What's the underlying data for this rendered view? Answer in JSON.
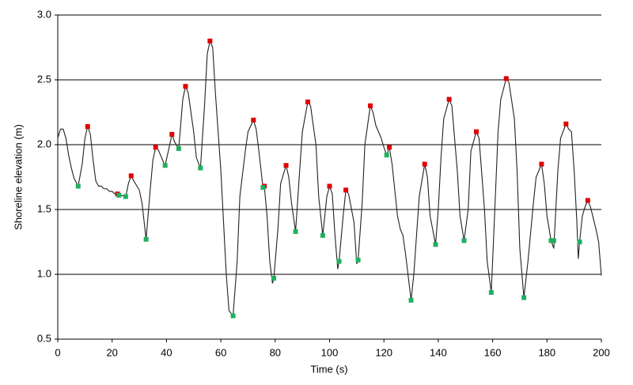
{
  "chart_data": {
    "type": "line",
    "xlabel": "Time (s)",
    "ylabel": "Shoreline elevation (m)",
    "xlim": [
      0,
      200
    ],
    "ylim": [
      0.5,
      3.0
    ],
    "xticks": [
      0,
      20,
      40,
      60,
      80,
      100,
      120,
      140,
      160,
      180,
      200
    ],
    "yticks": [
      {
        "value": 0.5,
        "label": "0.5"
      },
      {
        "value": 1.0,
        "label": "1.0"
      },
      1.5,
      {
        "value": 2.0,
        "label": "2.0"
      },
      2.5,
      {
        "value": 3.0,
        "label": "3.0"
      }
    ],
    "grid": true,
    "series": [
      {
        "color": "#222222",
        "x": [
          0,
          1,
          2,
          3,
          4,
          5,
          6,
          7.5,
          9,
          10,
          11,
          12,
          13,
          14,
          15,
          16,
          17,
          18,
          19,
          20,
          21,
          22,
          23,
          25,
          26,
          27,
          28,
          30,
          31,
          32.5,
          34,
          35,
          36,
          37,
          39,
          39.5,
          41,
          42,
          43,
          44.5,
          46,
          47,
          48,
          50,
          51,
          52.5,
          54,
          55,
          56,
          57,
          58,
          60,
          62,
          63,
          64.5,
          66,
          67,
          69,
          70,
          72,
          73,
          74,
          75.5,
          76,
          77,
          78,
          79,
          79.5,
          81,
          82,
          84,
          85,
          86,
          87.5,
          89,
          90,
          92,
          93,
          95,
          96,
          97.5,
          99,
          100,
          101,
          102,
          103,
          103.5,
          105,
          106,
          107,
          109,
          110,
          110.5,
          112,
          113,
          115,
          116,
          117,
          118,
          119,
          120,
          121,
          122,
          123,
          125,
          126,
          127,
          128,
          130,
          131,
          132,
          133,
          135,
          136,
          137,
          139,
          140,
          141,
          142,
          144,
          145,
          147,
          148,
          149.5,
          151,
          152,
          154,
          155,
          157,
          158,
          159.5,
          161,
          162,
          163,
          165,
          166,
          168,
          169,
          170,
          171.5,
          173,
          175,
          176,
          178,
          179,
          180,
          181.5,
          182.5,
          183,
          184,
          185,
          187,
          188,
          189,
          190,
          191,
          191.5,
          192,
          193,
          194,
          195,
          196,
          198,
          199,
          200
        ],
        "values": [
          2.05,
          2.12,
          2.12,
          2.05,
          1.92,
          1.82,
          1.74,
          1.68,
          1.85,
          2.05,
          2.14,
          2.08,
          1.88,
          1.72,
          1.68,
          1.68,
          1.66,
          1.66,
          1.64,
          1.64,
          1.62,
          1.62,
          1.61,
          1.6,
          1.7,
          1.76,
          1.72,
          1.65,
          1.55,
          1.27,
          1.65,
          1.88,
          1.98,
          1.96,
          1.86,
          1.84,
          1.98,
          2.08,
          2.02,
          1.97,
          2.35,
          2.45,
          2.4,
          2.1,
          1.9,
          1.82,
          2.3,
          2.7,
          2.8,
          2.75,
          2.4,
          1.8,
          1.0,
          0.72,
          0.68,
          1.1,
          1.6,
          1.95,
          2.1,
          2.19,
          2.12,
          1.95,
          1.67,
          1.68,
          1.45,
          1.1,
          0.93,
          0.97,
          1.35,
          1.7,
          1.84,
          1.75,
          1.55,
          1.33,
          1.8,
          2.1,
          2.33,
          2.3,
          2.0,
          1.6,
          1.3,
          1.6,
          1.68,
          1.62,
          1.3,
          1.04,
          1.1,
          1.45,
          1.65,
          1.62,
          1.4,
          1.08,
          1.11,
          1.55,
          2.0,
          2.3,
          2.25,
          2.15,
          2.1,
          2.05,
          1.98,
          1.92,
          1.98,
          1.85,
          1.45,
          1.35,
          1.3,
          1.15,
          0.8,
          1.0,
          1.3,
          1.6,
          1.85,
          1.75,
          1.45,
          1.23,
          1.5,
          1.9,
          2.2,
          2.35,
          2.3,
          1.8,
          1.45,
          1.26,
          1.5,
          1.95,
          2.1,
          2.05,
          1.5,
          1.1,
          0.86,
          1.6,
          2.1,
          2.35,
          2.51,
          2.48,
          2.2,
          1.8,
          1.2,
          0.82,
          1.1,
          1.55,
          1.75,
          1.85,
          1.7,
          1.45,
          1.26,
          1.2,
          1.4,
          1.8,
          2.05,
          2.16,
          2.12,
          2.1,
          1.8,
          1.4,
          1.12,
          1.25,
          1.45,
          1.52,
          1.57,
          1.52,
          1.35,
          1.25,
          0.99
        ]
      },
      {
        "color": "#e00000",
        "marker": "square",
        "x": [
          11,
          22,
          27,
          36,
          42,
          47,
          56,
          72,
          76,
          84,
          92,
          100,
          106,
          115,
          122,
          135,
          144,
          154,
          165,
          178,
          187,
          195
        ],
        "values": [
          2.14,
          1.62,
          1.76,
          1.98,
          2.08,
          2.45,
          2.8,
          2.19,
          1.68,
          1.84,
          2.33,
          1.68,
          1.65,
          2.3,
          1.98,
          1.85,
          2.35,
          2.1,
          2.51,
          1.85,
          2.16,
          1.57
        ]
      },
      {
        "color": "#20b060",
        "marker": "square",
        "x": [
          7.5,
          22.5,
          25,
          32.5,
          39.5,
          44.5,
          52.5,
          64.5,
          75.5,
          79.5,
          87.5,
          97.5,
          103.5,
          110.5,
          121,
          130,
          139,
          149.5,
          159.5,
          171.5,
          181.5,
          182.5,
          192
        ],
        "values": [
          1.68,
          1.61,
          1.6,
          1.27,
          1.84,
          1.97,
          1.82,
          0.68,
          1.67,
          0.97,
          1.33,
          1.3,
          1.1,
          1.11,
          1.92,
          0.8,
          1.23,
          1.26,
          0.86,
          0.82,
          1.26,
          1.26,
          1.25
        ]
      }
    ]
  }
}
